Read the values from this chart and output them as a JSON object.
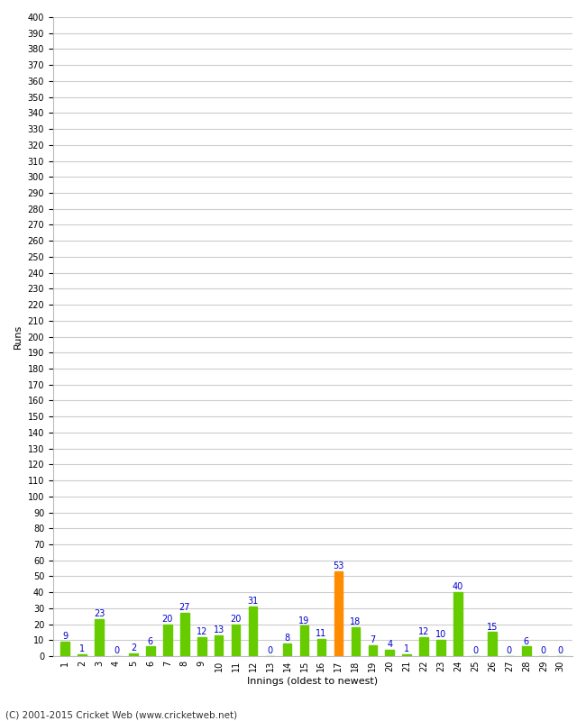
{
  "title": "",
  "xlabel": "Innings (oldest to newest)",
  "ylabel": "Runs",
  "innings": [
    1,
    2,
    3,
    4,
    5,
    6,
    7,
    8,
    9,
    10,
    11,
    12,
    13,
    14,
    15,
    16,
    17,
    18,
    19,
    20,
    21,
    22,
    23,
    24,
    25,
    26,
    27,
    28,
    29,
    30
  ],
  "values": [
    9,
    1,
    23,
    0,
    2,
    6,
    20,
    27,
    12,
    13,
    20,
    31,
    0,
    8,
    19,
    11,
    53,
    18,
    7,
    4,
    1,
    12,
    10,
    40,
    0,
    15,
    0,
    6,
    0,
    0
  ],
  "bar_colors": [
    "#66cc00",
    "#66cc00",
    "#66cc00",
    "#66cc00",
    "#66cc00",
    "#66cc00",
    "#66cc00",
    "#66cc00",
    "#66cc00",
    "#66cc00",
    "#66cc00",
    "#66cc00",
    "#66cc00",
    "#66cc00",
    "#66cc00",
    "#66cc00",
    "#ff8c00",
    "#66cc00",
    "#66cc00",
    "#66cc00",
    "#66cc00",
    "#66cc00",
    "#66cc00",
    "#66cc00",
    "#66cc00",
    "#66cc00",
    "#66cc00",
    "#66cc00",
    "#66cc00",
    "#66cc00"
  ],
  "ylim": [
    0,
    400
  ],
  "yticks": [
    0,
    10,
    20,
    30,
    40,
    50,
    60,
    70,
    80,
    90,
    100,
    110,
    120,
    130,
    140,
    150,
    160,
    170,
    180,
    190,
    200,
    210,
    220,
    230,
    240,
    250,
    260,
    270,
    280,
    290,
    300,
    310,
    320,
    330,
    340,
    350,
    360,
    370,
    380,
    390,
    400
  ],
  "label_color": "#0000cc",
  "background_color": "#ffffff",
  "grid_color": "#cccccc",
  "footer": "(C) 2001-2015 Cricket Web (www.cricketweb.net)",
  "bar_width": 0.5
}
